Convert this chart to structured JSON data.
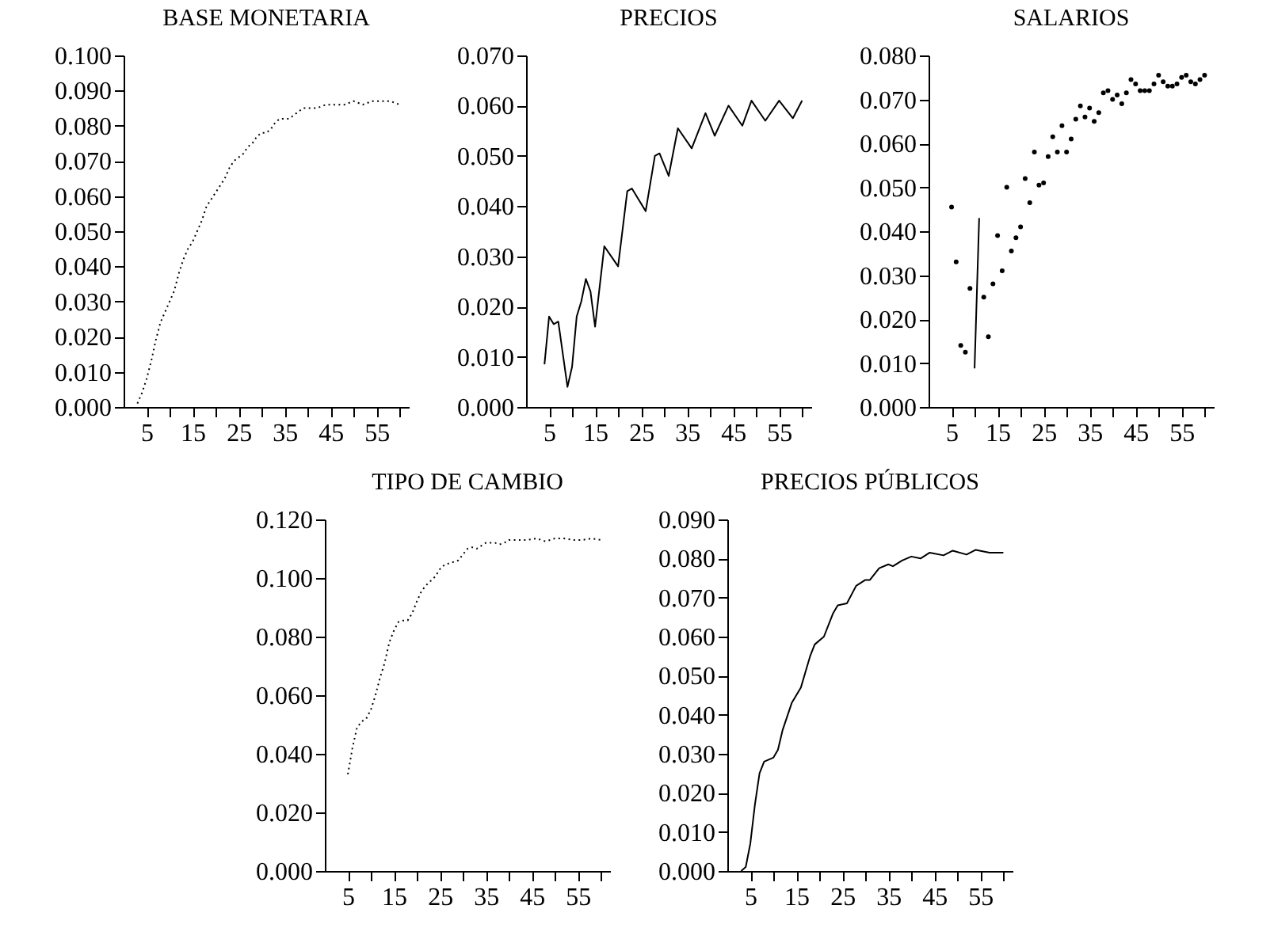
{
  "chart_data": [
    {
      "type": "line",
      "title": "BASE MONETARIA",
      "line_style": "dotted",
      "grid": false,
      "xlim": [
        0,
        62
      ],
      "xticks": [
        5,
        {
          "value": 10,
          "label": null
        },
        15,
        {
          "value": 20,
          "label": null
        },
        25,
        {
          "value": 30,
          "label": null
        },
        35,
        {
          "value": 40,
          "label": null
        },
        45,
        {
          "value": 50,
          "label": null
        },
        55,
        {
          "value": 60,
          "label": null
        }
      ],
      "ylim": [
        0,
        0.1
      ],
      "yticks": [
        {
          "value": 0,
          "label": "0.000"
        },
        {
          "value": 0.01,
          "label": "0.010"
        },
        {
          "value": 0.02,
          "label": "0.020"
        },
        {
          "value": 0.03,
          "label": "0.030"
        },
        {
          "value": 0.04,
          "label": "0.040"
        },
        {
          "value": 0.05,
          "label": "0.050"
        },
        {
          "value": 0.06,
          "label": "0.060"
        },
        {
          "value": 0.07,
          "label": "0.070"
        },
        {
          "value": 0.08,
          "label": "0.080"
        },
        {
          "value": 0.09,
          "label": "0.090"
        },
        {
          "value": 0.1,
          "label": "0.100"
        }
      ],
      "series": [
        {
          "color": "#000000",
          "x": [
            3,
            4,
            5,
            6,
            7,
            8,
            9,
            10,
            11,
            12,
            13,
            14,
            15,
            16,
            17,
            18,
            19,
            20,
            21,
            22,
            23,
            24,
            25,
            26,
            27,
            28,
            29,
            30,
            31,
            32,
            33,
            34,
            35,
            36,
            37,
            38,
            39,
            40,
            42,
            44,
            46,
            48,
            50,
            52,
            54,
            56,
            58,
            60
          ],
          "values": [
            0.001,
            0.004,
            0.008,
            0.013,
            0.019,
            0.024,
            0.027,
            0.03,
            0.033,
            0.038,
            0.042,
            0.045,
            0.047,
            0.05,
            0.053,
            0.057,
            0.059,
            0.061,
            0.063,
            0.065,
            0.068,
            0.07,
            0.071,
            0.072,
            0.074,
            0.075,
            0.077,
            0.078,
            0.078,
            0.079,
            0.081,
            0.082,
            0.082,
            0.082,
            0.083,
            0.084,
            0.085,
            0.085,
            0.085,
            0.086,
            0.086,
            0.086,
            0.087,
            0.086,
            0.087,
            0.087,
            0.087,
            0.086
          ]
        }
      ]
    },
    {
      "type": "line",
      "title": "PRECIOS",
      "grid": false,
      "xlim": [
        0,
        62
      ],
      "xticks": [
        5,
        {
          "value": 10,
          "label": null
        },
        15,
        {
          "value": 20,
          "label": null
        },
        25,
        {
          "value": 30,
          "label": null
        },
        35,
        {
          "value": 40,
          "label": null
        },
        45,
        {
          "value": 50,
          "label": null
        },
        55,
        {
          "value": 60,
          "label": null
        }
      ],
      "ylim": [
        0,
        0.07
      ],
      "yticks": [
        {
          "value": 0,
          "label": "0.000"
        },
        {
          "value": 0.01,
          "label": "0.010"
        },
        {
          "value": 0.02,
          "label": "0.020"
        },
        {
          "value": 0.03,
          "label": "0.030"
        },
        {
          "value": 0.04,
          "label": "0.040"
        },
        {
          "value": 0.05,
          "label": "0.050"
        },
        {
          "value": 0.06,
          "label": "0.060"
        },
        {
          "value": 0.07,
          "label": "0.070"
        }
      ],
      "series": [
        {
          "color": "#000000",
          "x": [
            4,
            5,
            6,
            7,
            9,
            10,
            11,
            12,
            13,
            14,
            15,
            17,
            20,
            22,
            23,
            26,
            28,
            29,
            31,
            33,
            36,
            39,
            41,
            44,
            47,
            49,
            52,
            55,
            58,
            60
          ],
          "values": [
            0.0085,
            0.018,
            0.0165,
            0.017,
            0.004,
            0.008,
            0.018,
            0.021,
            0.0255,
            0.023,
            0.016,
            0.032,
            0.028,
            0.043,
            0.0435,
            0.039,
            0.05,
            0.0505,
            0.046,
            0.0555,
            0.0515,
            0.0585,
            0.054,
            0.06,
            0.056,
            0.061,
            0.057,
            0.061,
            0.0575,
            0.061
          ]
        }
      ]
    },
    {
      "type": "scatter",
      "title": "SALARIOS",
      "grid": false,
      "xlim": [
        0,
        62
      ],
      "xticks": [
        5,
        {
          "value": 10,
          "label": null
        },
        15,
        {
          "value": 20,
          "label": null
        },
        25,
        {
          "value": 30,
          "label": null
        },
        35,
        {
          "value": 40,
          "label": null
        },
        45,
        {
          "value": 50,
          "label": null
        },
        55,
        {
          "value": 60,
          "label": null
        }
      ],
      "ylim": [
        0,
        0.08
      ],
      "yticks": [
        {
          "value": 0,
          "label": "0.000"
        },
        {
          "value": 0.01,
          "label": "0.010"
        },
        {
          "value": 0.02,
          "label": "0.020"
        },
        {
          "value": 0.03,
          "label": "0.030"
        },
        {
          "value": 0.04,
          "label": "0.040"
        },
        {
          "value": 0.05,
          "label": "0.050"
        },
        {
          "value": 0.06,
          "label": "0.060"
        },
        {
          "value": 0.07,
          "label": "0.070"
        },
        {
          "value": 0.08,
          "label": "0.080"
        }
      ],
      "series": [
        {
          "color": "#000000",
          "marker": "circle",
          "x": [
            5,
            6,
            7,
            8,
            9,
            12,
            13,
            14,
            15,
            16,
            17,
            18,
            19,
            20,
            21,
            22,
            23,
            24,
            25,
            26,
            27,
            28,
            29,
            30,
            31,
            32,
            33,
            34,
            35,
            36,
            37,
            38,
            39,
            40,
            41,
            42,
            43,
            44,
            45,
            46,
            47,
            48,
            49,
            50,
            51,
            52,
            53,
            54,
            55,
            56,
            57,
            58,
            59,
            60
          ],
          "values": [
            0.0455,
            0.033,
            0.014,
            0.0125,
            0.027,
            0.025,
            0.016,
            0.028,
            0.039,
            0.031,
            0.05,
            0.0355,
            0.0385,
            0.041,
            0.052,
            0.0465,
            0.058,
            0.0505,
            0.051,
            0.057,
            0.0615,
            0.058,
            0.064,
            0.058,
            0.061,
            0.0655,
            0.0685,
            0.066,
            0.068,
            0.065,
            0.067,
            0.0715,
            0.072,
            0.07,
            0.071,
            0.069,
            0.0715,
            0.0745,
            0.0735,
            0.072,
            0.072,
            0.072,
            0.0735,
            0.0755,
            0.074,
            0.073,
            0.073,
            0.0735,
            0.075,
            0.0755,
            0.074,
            0.0735,
            0.0745,
            0.0755
          ]
        },
        {
          "type": "line",
          "color": "#000000",
          "x": [
            10,
            11
          ],
          "values": [
            0.0088,
            0.043
          ]
        }
      ]
    },
    {
      "type": "line",
      "title": "TIPO DE CAMBIO",
      "line_style": "dotted",
      "grid": false,
      "xlim": [
        0,
        62
      ],
      "xticks": [
        5,
        {
          "value": 10,
          "label": null
        },
        15,
        {
          "value": 20,
          "label": null
        },
        25,
        {
          "value": 30,
          "label": null
        },
        35,
        {
          "value": 40,
          "label": null
        },
        45,
        {
          "value": 50,
          "label": null
        },
        55,
        {
          "value": 60,
          "label": null
        }
      ],
      "ylim": [
        0,
        0.12
      ],
      "yticks": [
        {
          "value": 0,
          "label": "0.000"
        },
        {
          "value": 0.02,
          "label": "0.020"
        },
        {
          "value": 0.04,
          "label": "0.040"
        },
        {
          "value": 0.06,
          "label": "0.060"
        },
        {
          "value": 0.08,
          "label": "0.080"
        },
        {
          "value": 0.1,
          "label": "0.100"
        },
        {
          "value": 0.12,
          "label": "0.120"
        }
      ],
      "series": [
        {
          "color": "#000000",
          "x": [
            5,
            6,
            7,
            8,
            9,
            10,
            11,
            12,
            13,
            14,
            15,
            16,
            17,
            18,
            19,
            20,
            21,
            22,
            23,
            24,
            25,
            26,
            27,
            28,
            29,
            30,
            31,
            32,
            33,
            34,
            35,
            36,
            37,
            38,
            39,
            40,
            42,
            44,
            46,
            48,
            50,
            52,
            54,
            56,
            58,
            60
          ],
          "values": [
            0.033,
            0.042,
            0.049,
            0.051,
            0.052,
            0.055,
            0.06,
            0.066,
            0.071,
            0.078,
            0.082,
            0.085,
            0.0855,
            0.0855,
            0.088,
            0.092,
            0.0955,
            0.0975,
            0.099,
            0.1005,
            0.103,
            0.1045,
            0.105,
            0.1055,
            0.106,
            0.108,
            0.11,
            0.1105,
            0.11,
            0.111,
            0.112,
            0.112,
            0.112,
            0.1115,
            0.112,
            0.113,
            0.113,
            0.113,
            0.1135,
            0.1125,
            0.1135,
            0.1135,
            0.113,
            0.113,
            0.1135,
            0.113
          ]
        }
      ]
    },
    {
      "type": "line",
      "title": "PRECIOS PÚBLICOS",
      "grid": false,
      "xlim": [
        0,
        62
      ],
      "xticks": [
        5,
        {
          "value": 10,
          "label": null
        },
        15,
        {
          "value": 20,
          "label": null
        },
        25,
        {
          "value": 30,
          "label": null
        },
        35,
        {
          "value": 40,
          "label": null
        },
        45,
        {
          "value": 50,
          "label": null
        },
        55,
        {
          "value": 60,
          "label": null
        }
      ],
      "ylim": [
        0,
        0.09
      ],
      "yticks": [
        {
          "value": 0,
          "label": "0.000"
        },
        {
          "value": 0.01,
          "label": "0.010"
        },
        {
          "value": 0.02,
          "label": "0.020"
        },
        {
          "value": 0.03,
          "label": "0.030"
        },
        {
          "value": 0.04,
          "label": "0.040"
        },
        {
          "value": 0.05,
          "label": "0.050"
        },
        {
          "value": 0.06,
          "label": "0.060"
        },
        {
          "value": 0.07,
          "label": "0.070"
        },
        {
          "value": 0.08,
          "label": "0.080"
        },
        {
          "value": 0.09,
          "label": "0.090"
        }
      ],
      "series": [
        {
          "color": "#000000",
          "x": [
            3,
            4,
            5,
            6,
            7,
            8,
            10,
            11,
            12,
            14,
            16,
            18,
            19,
            21,
            23,
            24,
            26,
            28,
            30,
            31,
            33,
            35,
            36,
            38,
            40,
            42,
            44,
            47,
            49,
            52,
            54,
            57,
            60
          ],
          "values": [
            0,
            0.001,
            0.007,
            0.017,
            0.025,
            0.028,
            0.029,
            0.031,
            0.036,
            0.043,
            0.047,
            0.055,
            0.058,
            0.06,
            0.066,
            0.068,
            0.0685,
            0.073,
            0.0745,
            0.0745,
            0.0775,
            0.0785,
            0.078,
            0.0795,
            0.0805,
            0.08,
            0.0815,
            0.0808,
            0.082,
            0.081,
            0.0822,
            0.0815,
            0.0815
          ]
        }
      ]
    }
  ]
}
